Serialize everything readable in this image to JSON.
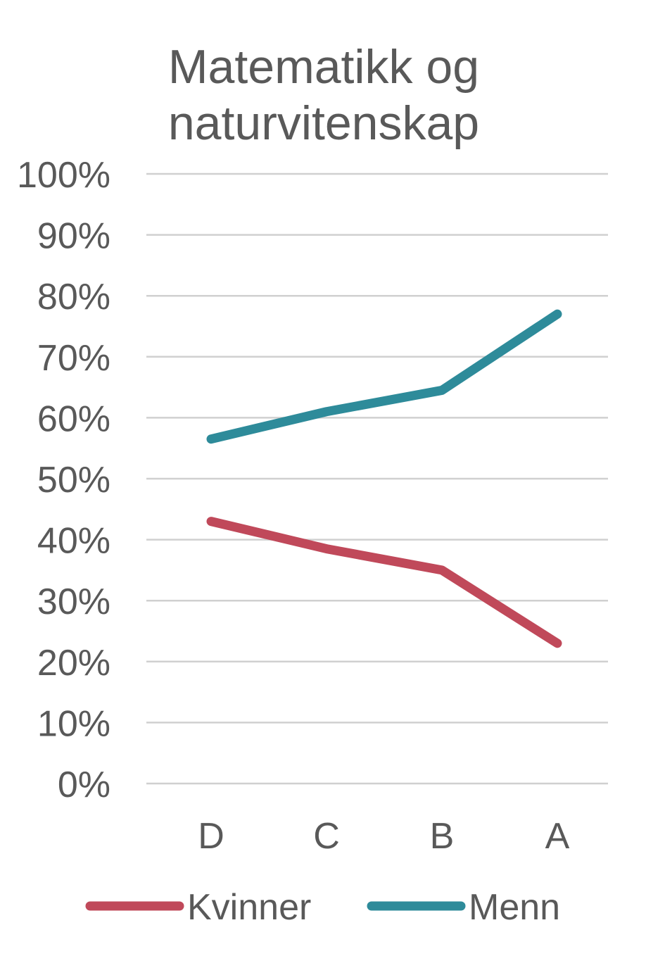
{
  "chart_data": {
    "type": "line",
    "title": "Matematikk og naturvitenskap",
    "title_lines": [
      "Matematikk og",
      "naturvitenskap"
    ],
    "categories": [
      "D",
      "C",
      "B",
      "A"
    ],
    "series": [
      {
        "name": "Kvinner",
        "values": [
          0.43,
          0.385,
          0.35,
          0.23
        ],
        "color": "#c0495a"
      },
      {
        "name": "Menn",
        "values": [
          0.565,
          0.61,
          0.645,
          0.77
        ],
        "color": "#2e8b9a"
      }
    ],
    "ylim": [
      0,
      1
    ],
    "yticks": [
      0,
      0.1,
      0.2,
      0.3,
      0.4,
      0.5,
      0.6,
      0.7,
      0.8,
      0.9,
      1.0
    ],
    "ytick_labels": [
      "0%",
      "10%",
      "20%",
      "30%",
      "40%",
      "50%",
      "60%",
      "70%",
      "80%",
      "90%",
      "100%"
    ],
    "xlabel": "",
    "ylabel": "",
    "grid": true,
    "legend_position": "bottom",
    "gridline_color": "#d0d0d0",
    "text_color": "#595959"
  }
}
